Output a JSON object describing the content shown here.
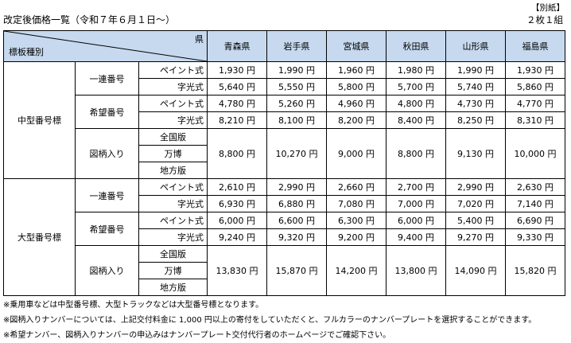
{
  "header": {
    "attachment_label": "【別紙】",
    "title": "改定後価格一覧（令和７年６月１日～）",
    "set_count": "２枚１組"
  },
  "table": {
    "corner_pref_label": "県",
    "corner_kind_label": "標板種別",
    "prefectures": [
      "青森県",
      "岩手県",
      "宮城県",
      "秋田県",
      "山形県",
      "福島県"
    ],
    "groups": [
      {
        "size": "中型番号標",
        "sections": [
          {
            "category": "一連番号",
            "rows": [
              {
                "method": "ペイント式",
                "prices": [
                  "1,930 円",
                  "1,990 円",
                  "1,960 円",
                  "1,980 円",
                  "1,990 円",
                  "1,930 円"
                ]
              },
              {
                "method": "字光式",
                "prices": [
                  "5,640 円",
                  "5,550 円",
                  "5,800 円",
                  "5,700 円",
                  "5,740 円",
                  "5,860 円"
                ]
              }
            ]
          },
          {
            "category": "希望番号",
            "rows": [
              {
                "method": "ペイント式",
                "prices": [
                  "4,780 円",
                  "5,260 円",
                  "4,960 円",
                  "4,800 円",
                  "4,730 円",
                  "4,770 円"
                ]
              },
              {
                "method": "字光式",
                "prices": [
                  "8,210 円",
                  "8,100 円",
                  "8,200 円",
                  "8,400 円",
                  "8,250 円",
                  "8,310 円"
                ]
              }
            ]
          }
        ],
        "design": {
          "category": "図柄入り",
          "variants": [
            "全国版",
            "万博",
            "地方版"
          ],
          "prices": [
            "8,800 円",
            "10,270 円",
            "9,000 円",
            "8,800 円",
            "9,130 円",
            "10,000 円"
          ]
        }
      },
      {
        "size": "大型番号標",
        "sections": [
          {
            "category": "一連番号",
            "rows": [
              {
                "method": "ペイント式",
                "prices": [
                  "2,610 円",
                  "2,990 円",
                  "2,660 円",
                  "2,700 円",
                  "2,990 円",
                  "2,630 円"
                ]
              },
              {
                "method": "字光式",
                "prices": [
                  "6,930 円",
                  "6,880 円",
                  "7,080 円",
                  "7,000 円",
                  "7,020 円",
                  "7,140 円"
                ]
              }
            ]
          },
          {
            "category": "希望番号",
            "rows": [
              {
                "method": "ペイント式",
                "prices": [
                  "6,000 円",
                  "6,600 円",
                  "6,300 円",
                  "6,000 円",
                  "5,400 円",
                  "6,690 円"
                ]
              },
              {
                "method": "字光式",
                "prices": [
                  "9,240 円",
                  "9,320 円",
                  "9,200 円",
                  "9,400 円",
                  "9,270 円",
                  "9,330 円"
                ]
              }
            ]
          }
        ],
        "design": {
          "category": "図柄入り",
          "variants": [
            "全国版",
            "万博",
            "地方版"
          ],
          "prices": [
            "13,830 円",
            "15,870 円",
            "14,200 円",
            "13,800 円",
            "14,090 円",
            "15,820 円"
          ]
        }
      }
    ]
  },
  "notes": [
    "※乗用車などは中型番号標、大型トラックなどは大型番号標となります。",
    "※図柄入りナンバーについては、上記交付料金に 1,000 円以上の寄付をしていただくと、フルカラーのナンバープレートを選択することができます。",
    "※希望ナンバー、図柄入りナンバーの申込みはナンバープレート交付代行者のホームページでご確認下さい。"
  ],
  "colors": {
    "header_background": "#c6d9ee",
    "border": "#000000"
  }
}
